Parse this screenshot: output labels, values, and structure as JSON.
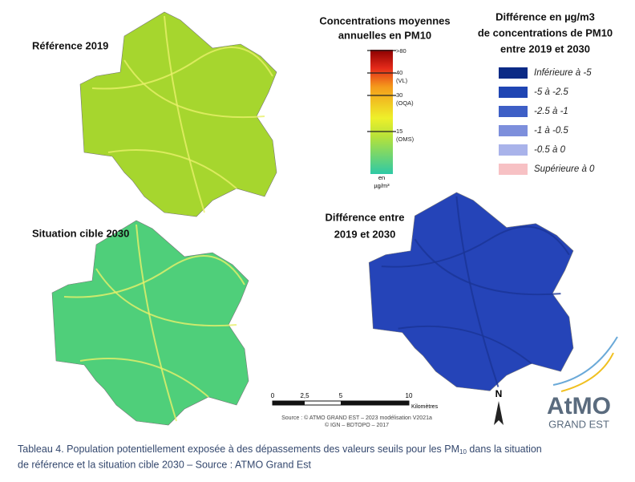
{
  "maps": [
    {
      "label": [
        "Référence 2019"
      ],
      "color": "#a6d62e"
    },
    {
      "label": [
        "Situation cible 2030"
      ],
      "color": "#4fcf7a"
    },
    {
      "label": [
        "Différence entre",
        "2019 et 2030"
      ],
      "color": "#2544b8"
    }
  ],
  "pm10_legend": {
    "title": [
      "Concentrations moyennes",
      "annuelles en PM10"
    ],
    "ticks": [
      ">80",
      "40",
      "(VL)",
      "30",
      "(OQA)",
      "15",
      "(OMS)"
    ],
    "unit": [
      "en",
      "µg/m³"
    ]
  },
  "diff_legend": {
    "title": [
      "Différence en µg/m3",
      "de concentrations de PM10",
      "entre 2019 et 2030"
    ],
    "items": [
      {
        "label": "Inférieure à -5",
        "color": "#0b2a86"
      },
      {
        "label": "-5 à -2.5",
        "color": "#1f45b3"
      },
      {
        "label": "-2.5 à -1",
        "color": "#3e5fc6"
      },
      {
        "label": "-1 à -0.5",
        "color": "#7d8fdc"
      },
      {
        "label": "-0.5 à 0",
        "color": "#a9b3ea"
      },
      {
        "label": "Supérieure à 0",
        "color": "#f7c1c4"
      }
    ]
  },
  "scale_bar": {
    "ticks": [
      "0",
      "2,5",
      "5",
      "10"
    ],
    "unit": "Kilomètres"
  },
  "source": [
    "Source : © ATMO GRAND EST – 2023 modélisation V2021a",
    "© IGN – BDTOPO – 2017"
  ],
  "north": "N",
  "logo": {
    "name": "AtMO",
    "subtitle": "GRAND EST"
  },
  "caption": {
    "before": "Tableau 4. Population potentiellement exposée à des dépassements des valeurs seuils pour les PM",
    "subscript": "10",
    "after": " dans la situation",
    "line2": "de référence et la situation cible 2030 – Source : ATMO Grand Est"
  }
}
